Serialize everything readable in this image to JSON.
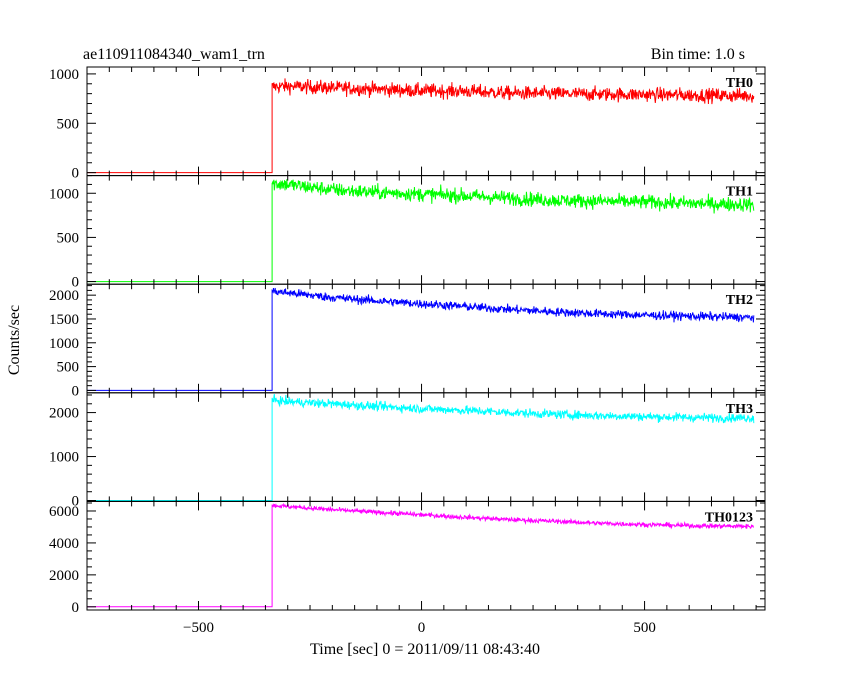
{
  "header": {
    "title": "ae110911084340_wam1_trn",
    "bin_time": "Bin time: 1.0 s"
  },
  "chart_data": {
    "type": "line",
    "xlabel": "Time [sec] 0 = 2011/09/11 08:43:40",
    "ylabel": "Counts/sec",
    "xlim": [
      -750,
      770
    ],
    "x_ticks": [
      -500,
      0,
      500
    ],
    "x_tick_labels": [
      "−500",
      "0",
      "500"
    ],
    "x_minor_step": 50,
    "burst_onset_x": -335,
    "data_x_range": [
      -750,
      745
    ],
    "panels": [
      {
        "name": "TH0",
        "color": "#ff0000",
        "ylim": [
          -30,
          1070
        ],
        "y_ticks": [
          0,
          500,
          1000
        ],
        "y_minor_step": 100,
        "baseline": 0,
        "points": [
          [
            -335,
            870
          ],
          [
            -300,
            875
          ],
          [
            -200,
            860
          ],
          [
            -100,
            845
          ],
          [
            0,
            830
          ],
          [
            100,
            825
          ],
          [
            200,
            805
          ],
          [
            300,
            800
          ],
          [
            400,
            795
          ],
          [
            500,
            790
          ],
          [
            600,
            785
          ],
          [
            700,
            780
          ],
          [
            745,
            780
          ]
        ],
        "noise": 35
      },
      {
        "name": "TH1",
        "color": "#00ff00",
        "ylim": [
          -30,
          1200
        ],
        "y_ticks": [
          0,
          500,
          1000
        ],
        "y_minor_step": 100,
        "baseline": 0,
        "points": [
          [
            -335,
            1110
          ],
          [
            -300,
            1100
          ],
          [
            -200,
            1040
          ],
          [
            -100,
            1010
          ],
          [
            0,
            990
          ],
          [
            100,
            970
          ],
          [
            200,
            945
          ],
          [
            300,
            920
          ],
          [
            400,
            910
          ],
          [
            500,
            900
          ],
          [
            600,
            885
          ],
          [
            700,
            875
          ],
          [
            745,
            870
          ]
        ],
        "noise": 40
      },
      {
        "name": "TH2",
        "color": "#0000ff",
        "ylim": [
          -50,
          2230
        ],
        "y_ticks": [
          0,
          500,
          1000,
          1500,
          2000
        ],
        "y_minor_step": 100,
        "baseline": 0,
        "points": [
          [
            -335,
            2080
          ],
          [
            -300,
            2050
          ],
          [
            -200,
            1950
          ],
          [
            -100,
            1880
          ],
          [
            0,
            1820
          ],
          [
            100,
            1760
          ],
          [
            200,
            1700
          ],
          [
            300,
            1650
          ],
          [
            400,
            1610
          ],
          [
            500,
            1580
          ],
          [
            600,
            1560
          ],
          [
            700,
            1540
          ],
          [
            745,
            1530
          ]
        ],
        "noise": 45
      },
      {
        "name": "TH3",
        "color": "#00ffff",
        "ylim": [
          -20,
          2450
        ],
        "y_ticks": [
          0,
          1000,
          2000
        ],
        "y_minor_step": 200,
        "baseline": 0,
        "points": [
          [
            -335,
            2280
          ],
          [
            -300,
            2250
          ],
          [
            -200,
            2200
          ],
          [
            -100,
            2140
          ],
          [
            0,
            2090
          ],
          [
            100,
            2050
          ],
          [
            200,
            2000
          ],
          [
            300,
            1960
          ],
          [
            400,
            1930
          ],
          [
            500,
            1910
          ],
          [
            600,
            1890
          ],
          [
            700,
            1880
          ],
          [
            745,
            1880
          ]
        ],
        "noise": 50
      },
      {
        "name": "TH0123",
        "color": "#ff00ff",
        "ylim": [
          -200,
          6600
        ],
        "y_ticks": [
          0,
          2000,
          4000,
          6000
        ],
        "y_minor_step": 500,
        "baseline": 0,
        "points": [
          [
            -335,
            6350
          ],
          [
            -300,
            6280
          ],
          [
            -200,
            6080
          ],
          [
            -100,
            5920
          ],
          [
            0,
            5760
          ],
          [
            100,
            5600
          ],
          [
            200,
            5460
          ],
          [
            300,
            5350
          ],
          [
            400,
            5230
          ],
          [
            500,
            5150
          ],
          [
            600,
            5080
          ],
          [
            700,
            5050
          ],
          [
            745,
            5040
          ]
        ],
        "noise": 70
      }
    ]
  }
}
